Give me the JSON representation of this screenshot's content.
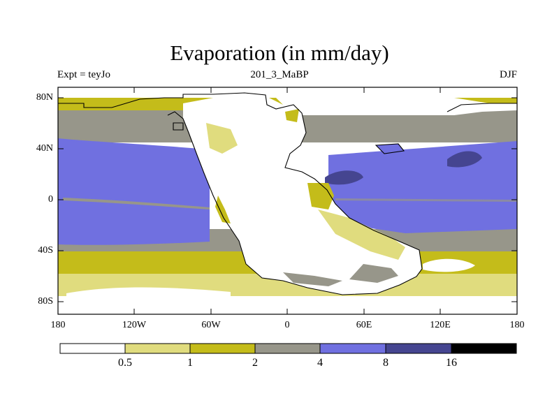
{
  "title": "Evaporation (in mm/day)",
  "subtitle": "201_3_MaBP",
  "left_label": "Expt = teyJo",
  "right_label": "DJF",
  "y_axis_labels": [
    "80N",
    "40N",
    "0",
    "40S",
    "80S"
  ],
  "x_axis_labels": [
    "180",
    "120W",
    "60W",
    "0",
    "60E",
    "120E",
    "180"
  ],
  "colorbar": {
    "labels": [
      "0.5",
      "1",
      "2",
      "4",
      "8",
      "16"
    ],
    "colors": [
      "#ffffff",
      "#e0dc7e",
      "#c4bc1a",
      "#97968a",
      "#7070e0",
      "#454590",
      "#000000"
    ]
  },
  "map_colors": {
    "ocean_low": "#e0dc7e",
    "ocean_mid": "#c4bc1a",
    "ocean_high": "#97968a",
    "ocean_higher": "#7070e0",
    "ocean_max": "#454590",
    "land": "#ffffff"
  }
}
